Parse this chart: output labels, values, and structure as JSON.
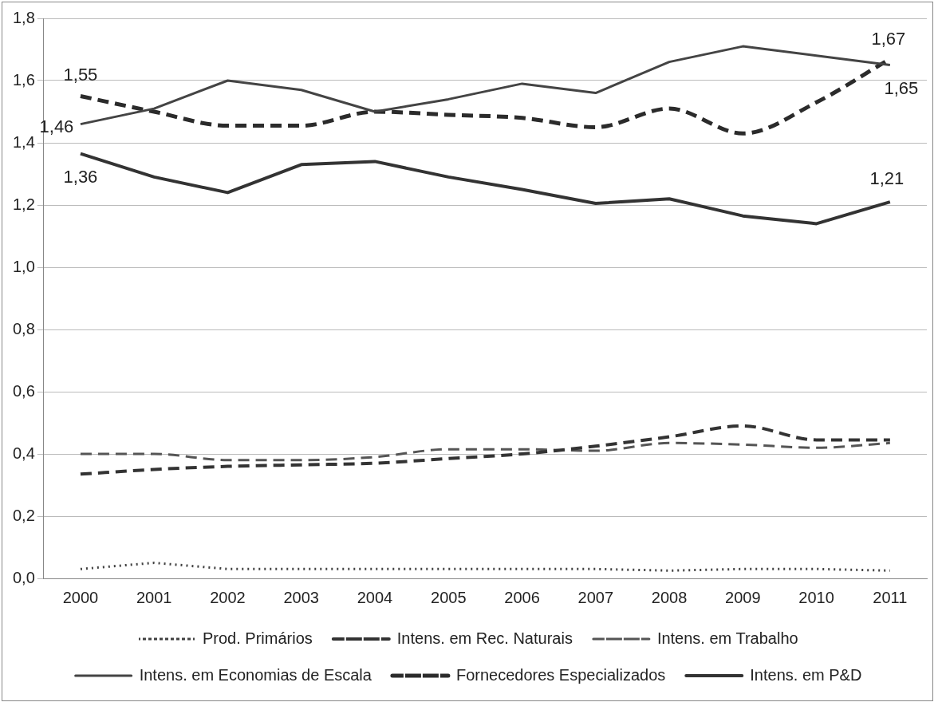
{
  "chart_data": {
    "type": "line",
    "categories": [
      "2000",
      "2001",
      "2002",
      "2003",
      "2004",
      "2005",
      "2006",
      "2007",
      "2008",
      "2009",
      "2010",
      "2011"
    ],
    "series": [
      {
        "name": "Prod. Primários",
        "color": "#404040",
        "line_style": "dotted",
        "values": [
          0.03,
          0.05,
          0.03,
          0.03,
          0.03,
          0.03,
          0.03,
          0.03,
          0.025,
          0.03,
          0.03,
          0.025
        ]
      },
      {
        "name": "Intens. em Rec. Naturais",
        "color": "#333333",
        "line_style": "dashed",
        "values": [
          0.335,
          0.35,
          0.36,
          0.365,
          0.37,
          0.385,
          0.4,
          0.425,
          0.455,
          0.49,
          0.445,
          0.445
        ]
      },
      {
        "name": "Intens. em Trabalho",
        "color": "#555555",
        "line_style": "dashed",
        "values": [
          0.4,
          0.4,
          0.38,
          0.38,
          0.39,
          0.415,
          0.415,
          0.41,
          0.435,
          0.43,
          0.42,
          0.435
        ]
      },
      {
        "name": "Intens. em Economias de Escala",
        "color": "#444444",
        "line_style": "solid",
        "values": [
          1.46,
          1.51,
          1.6,
          1.57,
          1.5,
          1.54,
          1.59,
          1.56,
          1.66,
          1.71,
          1.68,
          1.65
        ],
        "value_labels": [
          "1,46",
          null,
          null,
          null,
          null,
          null,
          null,
          null,
          null,
          null,
          null,
          "1,65"
        ]
      },
      {
        "name": "Fornecedores Especializados",
        "color": "#2b2b2b",
        "line_style": "dashed",
        "values": [
          1.55,
          1.5,
          1.455,
          1.455,
          1.5,
          1.49,
          1.48,
          1.45,
          1.51,
          1.43,
          1.53,
          1.67
        ],
        "value_labels": [
          "1,55",
          null,
          null,
          null,
          null,
          null,
          null,
          null,
          null,
          null,
          null,
          "1,67"
        ]
      },
      {
        "name": "Intens. em P&D",
        "color": "#333333",
        "line_style": "solid",
        "values": [
          1.365,
          1.29,
          1.24,
          1.33,
          1.34,
          1.29,
          1.25,
          1.205,
          1.22,
          1.165,
          1.14,
          1.21
        ],
        "value_labels": [
          "1,36",
          null,
          null,
          null,
          null,
          null,
          null,
          null,
          null,
          null,
          null,
          "1,21"
        ]
      }
    ],
    "ylim": [
      0,
      1.8
    ],
    "yticks": [
      {
        "value": 0,
        "label": "0,0"
      },
      {
        "value": 0.2,
        "label": "0,2"
      },
      {
        "value": 0.4,
        "label": "0,4"
      },
      {
        "value": 0.6,
        "label": "0,6"
      },
      {
        "value": 0.8,
        "label": "0,8"
      },
      {
        "value": 1.0,
        "label": "1,0"
      },
      {
        "value": 1.2,
        "label": "1,2"
      },
      {
        "value": 1.4,
        "label": "1,4"
      },
      {
        "value": 1.6,
        "label": "1,6"
      },
      {
        "value": 1.8,
        "label": "1,8"
      }
    ],
    "grid": "y",
    "legend": "bottom",
    "marker": "none"
  }
}
